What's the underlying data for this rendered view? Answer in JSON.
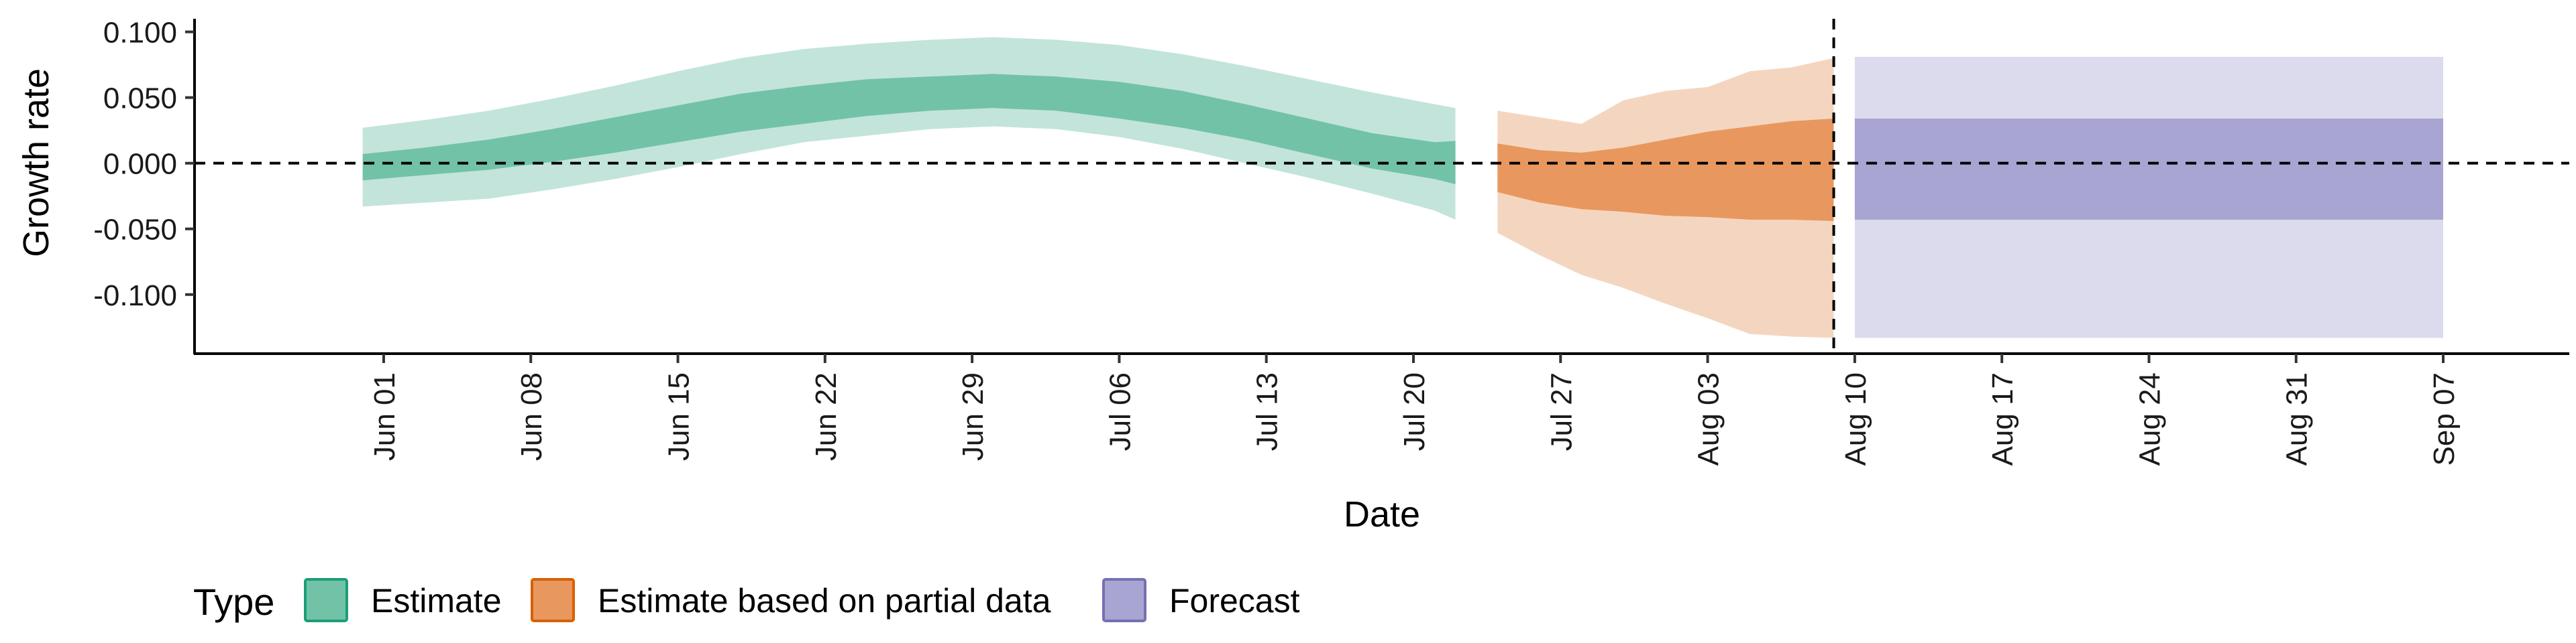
{
  "chart_data": {
    "type": "area",
    "xlabel": "Date",
    "ylabel": "Growth rate",
    "ylim": [
      -0.145,
      0.11
    ],
    "xlim": [
      "2020-05-23",
      "2020-09-13"
    ],
    "y_ticks": [
      "0.100",
      "0.050",
      "0.000",
      "-0.050",
      "-0.100"
    ],
    "y_tick_values": [
      0.1,
      0.05,
      0.0,
      -0.05,
      -0.1
    ],
    "x_ticks": [
      "Jun 01",
      "Jun 08",
      "Jun 15",
      "Jun 22",
      "Jun 29",
      "Jul 06",
      "Jul 13",
      "Jul 20",
      "Jul 27",
      "Aug 03",
      "Aug 10",
      "Aug 17",
      "Aug 24",
      "Aug 31",
      "Sep 07"
    ],
    "x_tick_dates": [
      "2020-06-01",
      "2020-06-08",
      "2020-06-15",
      "2020-06-22",
      "2020-06-29",
      "2020-07-06",
      "2020-07-13",
      "2020-07-20",
      "2020-07-27",
      "2020-08-03",
      "2020-08-10",
      "2020-08-17",
      "2020-08-24",
      "2020-08-31",
      "2020-09-07"
    ],
    "reference_line_y": 0.0,
    "reference_line_x": "2020-08-09",
    "grid": false,
    "legend_position": "bottom",
    "legend_title": "Type",
    "series": [
      {
        "name": "Estimate",
        "color": "#1b9e77",
        "inner_fill": "#72c2a8",
        "outer_fill": "#c3e4da",
        "x": [
          "2020-05-31",
          "2020-06-03",
          "2020-06-06",
          "2020-06-09",
          "2020-06-12",
          "2020-06-15",
          "2020-06-18",
          "2020-06-21",
          "2020-06-24",
          "2020-06-27",
          "2020-06-30",
          "2020-07-03",
          "2020-07-06",
          "2020-07-09",
          "2020-07-12",
          "2020-07-15",
          "2020-07-18",
          "2020-07-21",
          "2020-07-22"
        ],
        "upper90": [
          0.027,
          0.033,
          0.04,
          0.049,
          0.059,
          0.07,
          0.08,
          0.087,
          0.091,
          0.094,
          0.096,
          0.094,
          0.09,
          0.083,
          0.074,
          0.064,
          0.054,
          0.045,
          0.042
        ],
        "upper50": [
          0.007,
          0.012,
          0.018,
          0.026,
          0.035,
          0.044,
          0.053,
          0.059,
          0.064,
          0.066,
          0.068,
          0.066,
          0.062,
          0.055,
          0.045,
          0.034,
          0.023,
          0.016,
          0.017
        ],
        "lower50": [
          -0.013,
          -0.009,
          -0.005,
          0.001,
          0.008,
          0.016,
          0.024,
          0.03,
          0.036,
          0.04,
          0.042,
          0.04,
          0.034,
          0.027,
          0.018,
          0.007,
          -0.004,
          -0.012,
          -0.016
        ],
        "lower90": [
          -0.033,
          -0.03,
          -0.027,
          -0.02,
          -0.012,
          -0.003,
          0.007,
          0.016,
          0.021,
          0.026,
          0.028,
          0.026,
          0.02,
          0.011,
          0.0,
          -0.011,
          -0.023,
          -0.036,
          -0.043
        ]
      },
      {
        "name": "Estimate based on partial data",
        "color": "#d95f02",
        "inner_fill": "#e8985e",
        "outer_fill": "#f4d6c0",
        "x": [
          "2020-07-24",
          "2020-07-26",
          "2020-07-28",
          "2020-07-30",
          "2020-08-01",
          "2020-08-03",
          "2020-08-05",
          "2020-08-07",
          "2020-08-09"
        ],
        "upper90": [
          0.04,
          0.035,
          0.03,
          0.048,
          0.055,
          0.058,
          0.07,
          0.073,
          0.08
        ],
        "upper50": [
          0.015,
          0.01,
          0.008,
          0.012,
          0.018,
          0.024,
          0.028,
          0.032,
          0.034
        ],
        "lower50": [
          -0.022,
          -0.03,
          -0.035,
          -0.037,
          -0.04,
          -0.041,
          -0.043,
          -0.043,
          -0.044
        ],
        "lower90": [
          -0.053,
          -0.07,
          -0.085,
          -0.095,
          -0.107,
          -0.118,
          -0.13,
          -0.132,
          -0.133
        ]
      },
      {
        "name": "Forecast",
        "color": "#7570b3",
        "inner_fill": "#a8a5d2",
        "outer_fill": "#dcdbed",
        "x": [
          "2020-08-10",
          "2020-09-07"
        ],
        "upper90": [
          0.081,
          0.081
        ],
        "upper50": [
          0.034,
          0.034
        ],
        "lower50": [
          -0.043,
          -0.043
        ],
        "lower90": [
          -0.133,
          -0.133
        ]
      }
    ]
  }
}
